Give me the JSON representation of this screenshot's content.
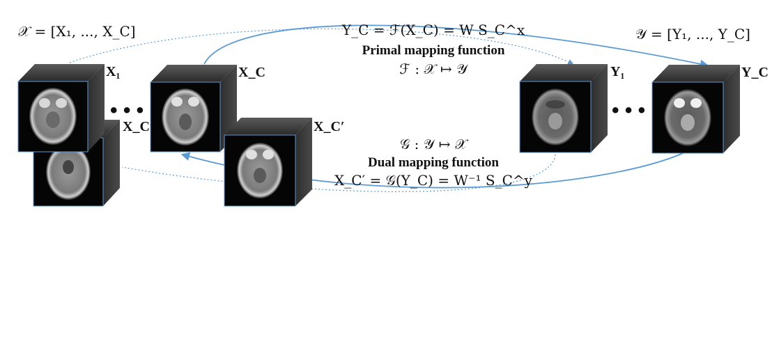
{
  "figure": {
    "left_set": "𝒳 = [X₁, ..., X_C]",
    "right_set": "𝒴 = [Y₁, ..., Y_C]",
    "primal_equation": "Y_C = ℱ(X_C) = W S_C^x",
    "primal_title": "Primal mapping function",
    "primal_signature": "ℱ : 𝒳 ↦ 𝒴",
    "dual_signature": "𝒢 : 𝒴 ↦ 𝒳",
    "dual_title": "Dual mapping function",
    "dual_equation": "X_C′ = 𝒢(Y_C) = W⁻¹ S_C^y",
    "cube_labels": {
      "x1": "X₁",
      "xc": "X_C",
      "xc_prime_left": "X_C′",
      "xc_prime_right": "X_C′",
      "y1": "Y₁",
      "yc": "Y_C"
    },
    "ellipsis": "• • •",
    "arrow_color": "#5b9bd5"
  }
}
